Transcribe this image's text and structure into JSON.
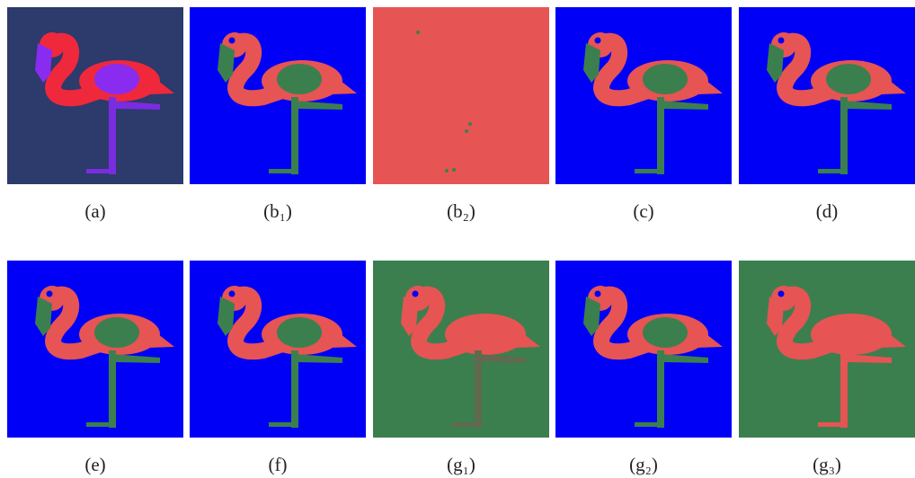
{
  "panels": [
    {
      "caption": "(a)"
    },
    {
      "caption": "(b₁)"
    },
    {
      "caption": "(b₂)"
    },
    {
      "caption": "(c)"
    },
    {
      "caption": "(d)"
    },
    {
      "caption": "(e)"
    },
    {
      "caption": "(f)"
    },
    {
      "caption": "(g₁)"
    },
    {
      "caption": "(g₂)"
    },
    {
      "caption": "(g₃)"
    }
  ]
}
